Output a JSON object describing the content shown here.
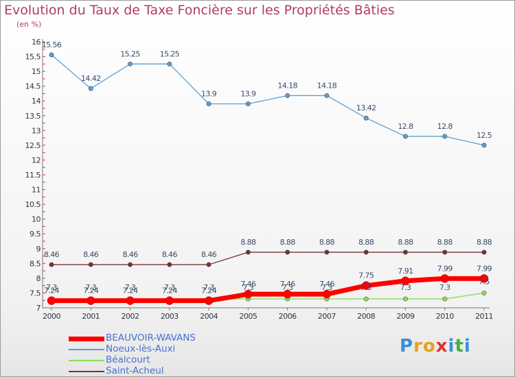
{
  "title": "Evolution du Taux de Taxe Foncière sur les Propriétés Bâties",
  "subtitle": "(en %)",
  "logo": {
    "text": "Proxiti",
    "letters": [
      "P",
      "r",
      "o",
      "x",
      "i",
      "t",
      "i"
    ],
    "colors": [
      "#3a8fd8",
      "#e8a020",
      "#e8a020",
      "#e03030",
      "#3a8fd8",
      "#40b040",
      "#3a8fd8"
    ]
  },
  "chart_data": {
    "type": "line",
    "title": "Evolution du Taux de Taxe Foncière sur les Propriétés Bâties",
    "ylabel": "(en %)",
    "x": [
      "2000",
      "2001",
      "2002",
      "2003",
      "2004",
      "2005",
      "2006",
      "2007",
      "2008",
      "2009",
      "2010",
      "2011"
    ],
    "ylim": [
      7,
      16
    ],
    "yticks": [
      "7",
      "7.5",
      "8",
      "8.5",
      "9",
      "9.5",
      "10",
      "10.5",
      "11",
      "11.5",
      "12",
      "12.5",
      "13",
      "13.5",
      "14",
      "14.5",
      "15",
      "15.5",
      "16"
    ],
    "grid": false,
    "legend_position": "bottom-left",
    "series": [
      {
        "name": "BEAUVOIR-WAVANS",
        "color": "#ff0000",
        "values": [
          7.24,
          7.24,
          7.24,
          7.24,
          7.24,
          7.46,
          7.46,
          7.46,
          7.75,
          7.91,
          7.99,
          7.99
        ],
        "labels": [
          "7.24",
          "7.24",
          "7.24",
          "7.24",
          "7.24",
          "7.46",
          "7.46",
          "7.46",
          "7.75",
          "7.91",
          "7.99",
          "7.99"
        ]
      },
      {
        "name": "Noeux-lès-Auxi",
        "color": "#5a9fd4",
        "values": [
          15.56,
          14.42,
          15.25,
          15.25,
          13.9,
          13.9,
          14.18,
          14.18,
          13.42,
          12.8,
          12.8,
          12.5
        ],
        "labels": [
          "15.56",
          "14.42",
          "15.25",
          "15.25",
          "13.9",
          "13.9",
          "14.18",
          "14.18",
          "13.42",
          "12.8",
          "12.8",
          "12.5"
        ]
      },
      {
        "name": "Béalcourt",
        "color": "#88dd55",
        "values": [
          7.3,
          7.3,
          7.3,
          7.3,
          7.3,
          7.3,
          7.3,
          7.3,
          7.3,
          7.3,
          7.3,
          7.5
        ],
        "labels": [
          "7.3",
          "7.3",
          "7.3",
          "7.3",
          "7.3",
          "7.3",
          "7.3",
          "7.3",
          "7.3",
          "7.3",
          "7.3",
          "7.5"
        ]
      },
      {
        "name": "Saint-Acheul",
        "color": "#7a2e36",
        "values": [
          8.46,
          8.46,
          8.46,
          8.46,
          8.46,
          8.88,
          8.88,
          8.88,
          8.88,
          8.88,
          8.88,
          8.88
        ],
        "labels": [
          "8.46",
          "8.46",
          "8.46",
          "8.46",
          "8.46",
          "8.88",
          "8.88",
          "8.88",
          "8.88",
          "8.88",
          "8.88",
          "8.88"
        ]
      }
    ]
  }
}
